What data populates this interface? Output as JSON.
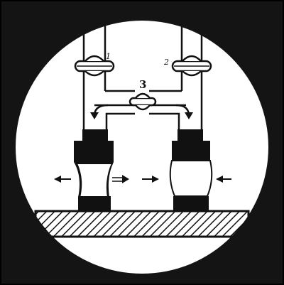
{
  "labels": {
    "valve_1": "1",
    "valve_2": "2",
    "valve_3": "3"
  },
  "colors": {
    "ink": "#111111",
    "frame": "#141414",
    "paper": "#ffffff"
  }
}
